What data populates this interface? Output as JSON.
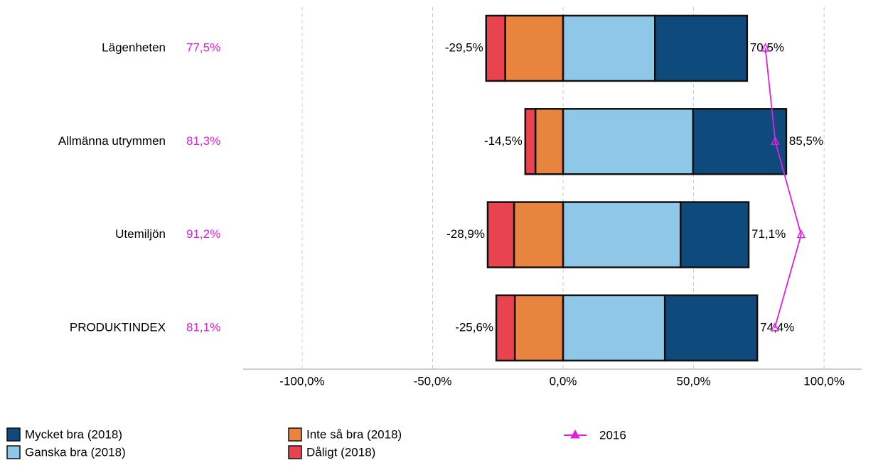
{
  "chart_data": {
    "type": "diverging_bar",
    "categories": [
      "Lägenheten",
      "Allmänna utrymmen",
      "Utemiljön",
      "PRODUKTINDEX"
    ],
    "series": [
      {
        "name": "Mycket bra (2018)",
        "color": "#0e4a7b",
        "values": [
          35.3,
          35.7,
          26.1,
          35.4
        ]
      },
      {
        "name": "Ganska bra (2018)",
        "color": "#8fc7e9",
        "values": [
          35.2,
          49.8,
          45.0,
          39.0
        ]
      },
      {
        "name": "Inte så bra (2018)",
        "color": "#e8843d",
        "values": [
          -22.2,
          -10.6,
          -18.8,
          -18.5
        ]
      },
      {
        "name": "Dåligt (2018)",
        "color": "#e9434f",
        "values": [
          -7.3,
          -3.9,
          -10.1,
          -7.1
        ]
      }
    ],
    "negative_totals": {
      "values": [
        -29.5,
        -14.5,
        -28.9,
        -25.6
      ],
      "value_labels": [
        "-29,5%",
        "-14,5%",
        "-28,9%",
        "-25,6%"
      ]
    },
    "positive_totals": {
      "values": [
        70.5,
        85.5,
        71.1,
        74.4
      ],
      "value_labels": [
        "70,5%",
        "85,5%",
        "71,1%",
        "74,4%"
      ]
    },
    "line_series": {
      "name": "2016",
      "color": "#e020e0",
      "values": [
        77.5,
        81.3,
        91.2,
        81.1
      ],
      "value_labels": [
        "77,5%",
        "81,3%",
        "91,2%",
        "81,1%"
      ]
    },
    "xlim": [
      -122.6,
      114.4
    ],
    "xticks": [
      {
        "value": -100,
        "label": "-100,0%"
      },
      {
        "value": -50,
        "label": "-50,0%"
      },
      {
        "value": 0,
        "label": "0,0%"
      },
      {
        "value": 50,
        "label": "50,0%"
      },
      {
        "value": 100,
        "label": "100,0%"
      }
    ],
    "grid": true
  }
}
